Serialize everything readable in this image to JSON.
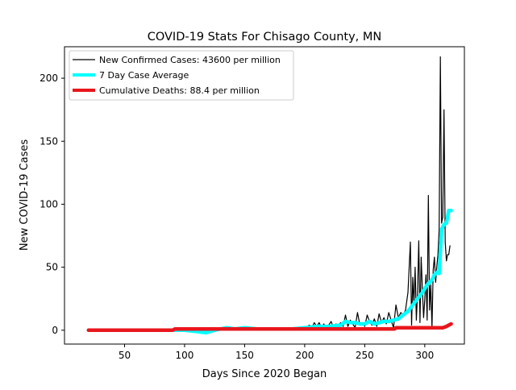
{
  "chart_data": {
    "type": "line",
    "title": "COVID-19 Stats For Chisago County, MN",
    "xlabel": "Days Since 2020 Began",
    "ylabel": "New COVID-19 Cases",
    "xlim": [
      0,
      333
    ],
    "ylim": [
      -11,
      225
    ],
    "xticks": [
      50,
      100,
      150,
      200,
      250,
      300
    ],
    "yticks": [
      0,
      50,
      100,
      150,
      200
    ],
    "grid": false,
    "legend_position": "top-left",
    "series": [
      {
        "name": "New Confirmed Cases: 43600 per million",
        "color": "#000000",
        "x": [
          20,
          40,
          60,
          80,
          92,
          100,
          110,
          118,
          122,
          125,
          128,
          132,
          135,
          138,
          142,
          145,
          148,
          152,
          156,
          160,
          165,
          170,
          175,
          180,
          185,
          190,
          195,
          200,
          202,
          204,
          206,
          208,
          210,
          212,
          214,
          216,
          218,
          220,
          222,
          224,
          226,
          228,
          230,
          232,
          234,
          236,
          238,
          240,
          242,
          244,
          246,
          248,
          250,
          252,
          254,
          256,
          258,
          260,
          262,
          264,
          266,
          268,
          270,
          272,
          274,
          276,
          278,
          280,
          282,
          284,
          286,
          288,
          289,
          290,
          291,
          292,
          293,
          294,
          295,
          296,
          297,
          298,
          299,
          300,
          301,
          302,
          303,
          304,
          305,
          306,
          307,
          308,
          309,
          310,
          311,
          312,
          313,
          314,
          315,
          316,
          317,
          318,
          319,
          320,
          321
        ],
        "y": [
          0,
          0,
          0,
          0,
          0,
          0,
          0,
          0,
          1,
          0,
          1,
          0,
          3,
          1,
          0,
          2,
          0,
          1,
          0,
          2,
          1,
          0,
          1,
          0,
          2,
          0,
          1,
          0,
          3,
          4,
          2,
          6,
          3,
          6,
          2,
          5,
          1,
          4,
          7,
          2,
          5,
          4,
          6,
          3,
          12,
          3,
          8,
          5,
          2,
          14,
          4,
          6,
          3,
          12,
          7,
          4,
          9,
          3,
          13,
          6,
          10,
          5,
          14,
          8,
          2,
          20,
          10,
          14,
          12,
          16,
          30,
          70,
          4,
          42,
          20,
          50,
          8,
          30,
          71,
          6,
          58,
          32,
          10,
          24,
          44,
          8,
          107,
          16,
          36,
          2,
          48,
          58,
          38,
          50,
          60,
          80,
          217,
          85,
          90,
          175,
          70,
          55,
          60,
          60,
          67
        ]
      },
      {
        "name": "7 Day Case Average",
        "color": "#00ffff",
        "x": [
          20,
          60,
          100,
          110,
          118,
          125,
          135,
          142,
          150,
          160,
          170,
          180,
          190,
          200,
          210,
          220,
          230,
          234,
          238,
          242,
          246,
          250,
          254,
          258,
          262,
          266,
          270,
          274,
          278,
          282,
          286,
          290,
          294,
          298,
          302,
          306,
          308,
          310,
          312,
          314,
          316,
          318,
          320,
          322
        ],
        "y": [
          0,
          0,
          0,
          -1,
          -2,
          0,
          2,
          1,
          2,
          1,
          1,
          1,
          1,
          2,
          3,
          3,
          4,
          7,
          6,
          6,
          5,
          5,
          7,
          5,
          6,
          7,
          7,
          8,
          9,
          12,
          15,
          20,
          25,
          30,
          36,
          40,
          44,
          46,
          45,
          80,
          84,
          85,
          95,
          95
        ]
      },
      {
        "name": "Cumulative Deaths: 88.4 per million",
        "color": "#e8161c",
        "x": [
          20,
          40,
          60,
          80,
          90,
          92,
          100,
          120,
          140,
          160,
          180,
          200,
          220,
          240,
          260,
          275,
          276,
          290,
          300,
          310,
          315,
          318,
          320,
          322
        ],
        "y": [
          0,
          0,
          0,
          0,
          0,
          1,
          1,
          1,
          1,
          1,
          1,
          1,
          1,
          1,
          1,
          1,
          2,
          2,
          2,
          2,
          2,
          3,
          4,
          5
        ]
      }
    ]
  }
}
